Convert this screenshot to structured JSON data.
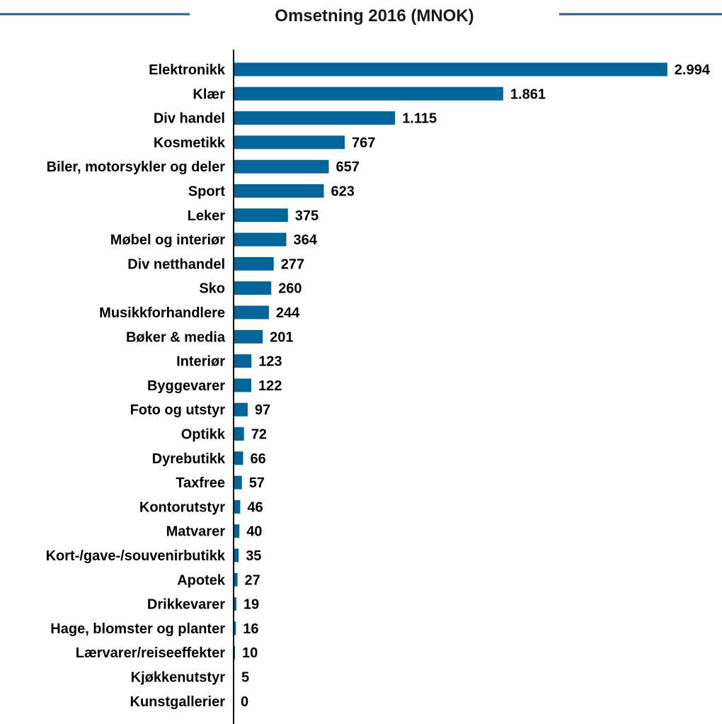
{
  "colors": {
    "bar": "#006699",
    "title_rule": "#1f5f8b",
    "axis": "#000000",
    "text": "#000000"
  },
  "chart_data": {
    "type": "bar",
    "orientation": "horizontal",
    "title": "Omsetning 2016 (MNOK)",
    "xlabel": "",
    "ylabel": "",
    "xlim": [
      0,
      3000
    ],
    "grid": false,
    "legend": "none",
    "categories": [
      "Elektronikk",
      "Klær",
      "Div handel",
      "Kosmetikk",
      "Biler, motorsykler og deler",
      "Sport",
      "Leker",
      "Møbel og interiør",
      "Div netthandel",
      "Sko",
      "Musikkforhandlere",
      "Bøker & media",
      "Interiør",
      "Byggevarer",
      "Foto og utstyr",
      "Optikk",
      "Dyrebutikk",
      "Taxfree",
      "Kontorutstyr",
      "Matvarer",
      "Kort-/gave-/souvenirbutikk",
      "Apotek",
      "Drikkevarer",
      "Hage, blomster og planter",
      "Lærvarer/reiseeffekter",
      "Kjøkkenutstyr",
      "Kunstgallerier"
    ],
    "values": [
      2994,
      1861,
      1115,
      767,
      657,
      623,
      375,
      364,
      277,
      260,
      244,
      201,
      123,
      122,
      97,
      72,
      66,
      57,
      46,
      40,
      35,
      27,
      19,
      16,
      10,
      5,
      0
    ],
    "value_labels": [
      "2.994",
      "1.861",
      "1.115",
      "767",
      "657",
      "623",
      "375",
      "364",
      "277",
      "260",
      "244",
      "201",
      "123",
      "122",
      "97",
      "72",
      "66",
      "57",
      "46",
      "40",
      "35",
      "27",
      "19",
      "16",
      "10",
      "5",
      "0"
    ]
  }
}
